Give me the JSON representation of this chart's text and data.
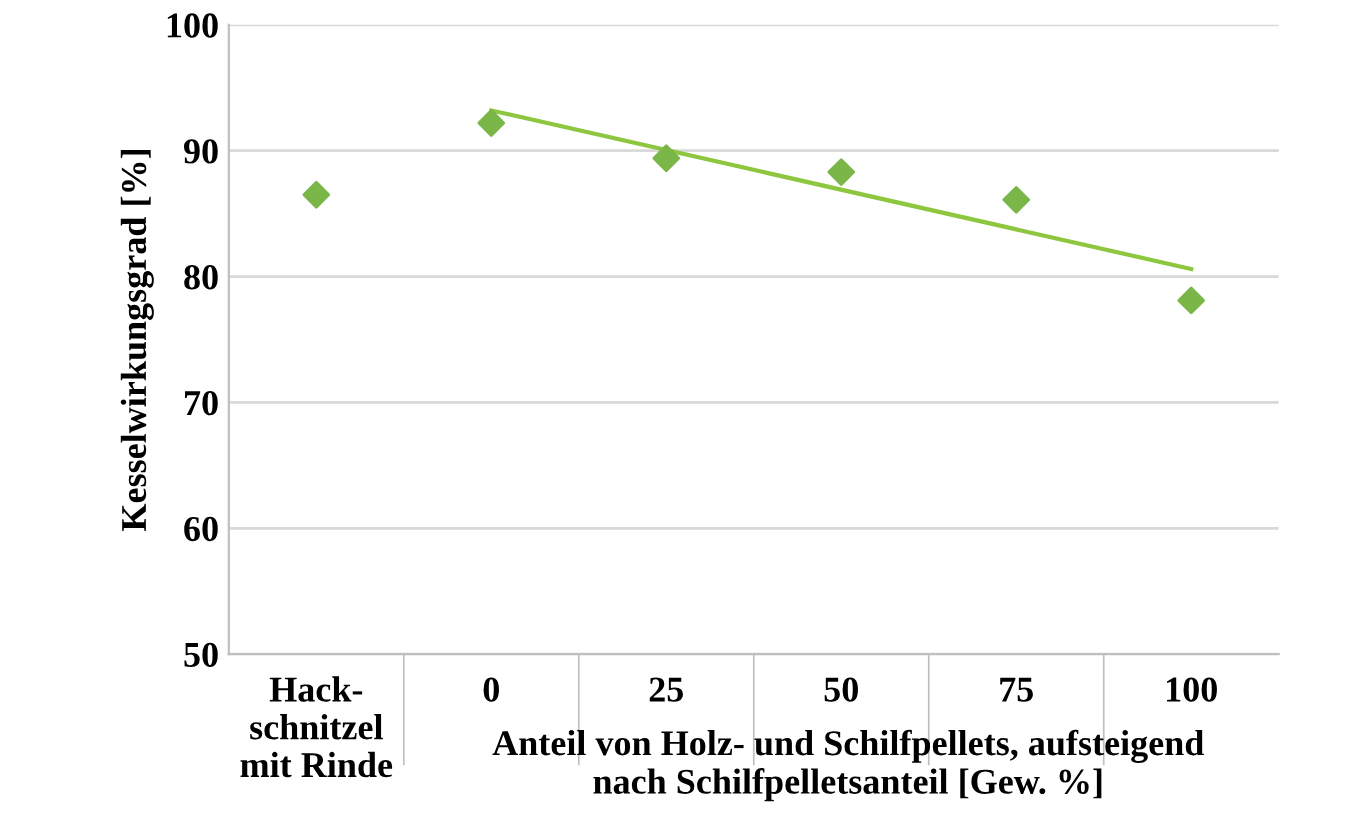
{
  "chart_data": {
    "type": "scatter",
    "ylabel": "Kesselwirkungsgrad [%]",
    "xlabel": "Anteil von Holz- und Schilfpellets, aufsteigend\nnach Schilfpelletsanteil [Gew. %]",
    "categories": [
      "Hack-\nschnitzel\nmit Rinde",
      "0",
      "25",
      "50",
      "75",
      "100"
    ],
    "series": [
      {
        "color": "#7ab648",
        "marker": "diamond",
        "values": [
          86.5,
          92.2,
          89.4,
          88.3,
          86.1,
          78.1
        ]
      },
      {
        "type": "line",
        "color": "#8dc63f",
        "marker": "none",
        "x": [
          "0",
          "100"
        ],
        "values": [
          93.2,
          80.6
        ]
      }
    ],
    "ylim": [
      50,
      100
    ],
    "yticks": [
      50,
      60,
      70,
      80,
      90,
      100
    ],
    "grid": "y",
    "legend": false
  }
}
